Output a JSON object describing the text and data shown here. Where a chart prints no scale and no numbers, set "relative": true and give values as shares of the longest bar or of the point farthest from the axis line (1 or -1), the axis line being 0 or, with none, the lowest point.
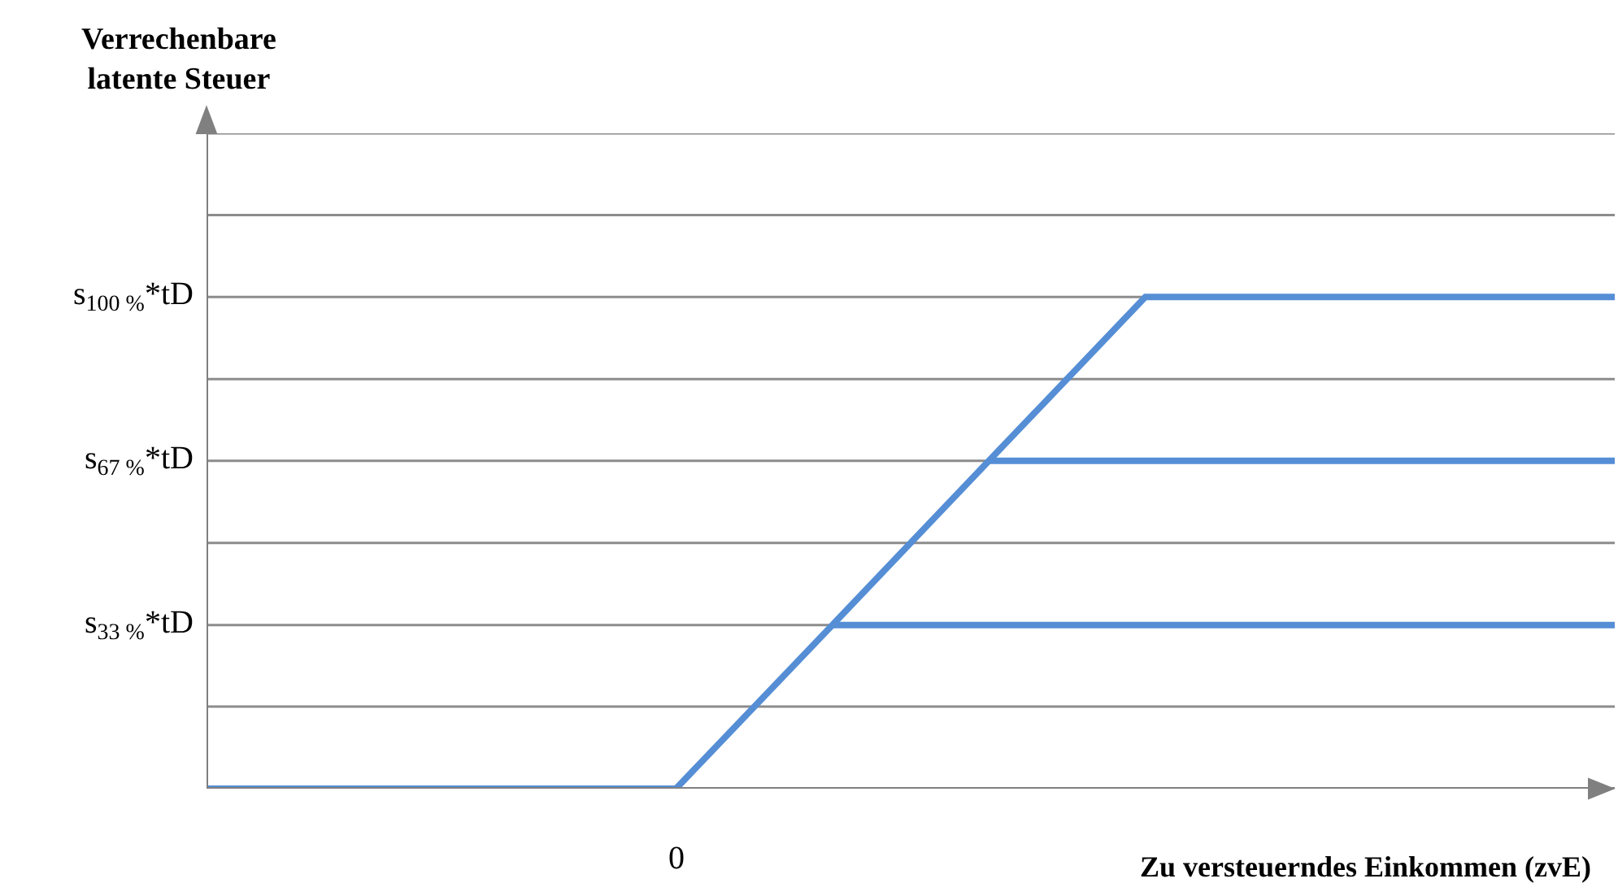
{
  "chart_data": {
    "type": "line",
    "relative": true,
    "xlabel": "Zu versteuerndes Einkommen (zvE)",
    "categories": [
      null,
      null,
      null,
      null,
      null,
      null,
      null,
      null,
      null,
      null
    ],
    "annotations": [
      "Verrechenbare latente Steuer",
      {
        "text": "0",
        "y": 0
      }
    ],
    "marker": "none",
    "line_style": "solid",
    "ref_lines": [
      {
        "axis": "y",
        "value": 0.167,
        "color": "#8c8c8c"
      },
      {
        "axis": "y",
        "value": 0.333,
        "label": "s$_{33 %}$*tD",
        "color": "#8c8c8c"
      },
      {
        "axis": "y",
        "value": 0.5,
        "color": "#8c8c8c"
      },
      {
        "axis": "y",
        "value": 0.667,
        "label": "s$_{67 %}$*tD",
        "color": "#8c8c8c"
      },
      {
        "axis": "y",
        "value": 0.833,
        "color": "#8c8c8c"
      },
      {
        "axis": "y",
        "value": 1,
        "label": "s$_{100 %}$*tD",
        "color": "#8c8c8c"
      },
      {
        "axis": "y",
        "value": 1.167,
        "color": "#8c8c8c"
      },
      {
        "axis": "y",
        "value": 1.333,
        "color": "#8c8c8c"
      }
    ],
    "series": [
      {
        "color": "#558ed5",
        "values": [
          0,
          0,
          0,
          0,
          0.333,
          0.667,
          1,
          1,
          1,
          1
        ]
      },
      {
        "color": "#558ed5",
        "values": [
          null,
          null,
          null,
          null,
          null,
          0.667,
          0.667,
          0.667,
          0.667,
          0.667
        ]
      },
      {
        "color": "#558ed5",
        "values": [
          null,
          null,
          null,
          null,
          0.333,
          0.333,
          0.333,
          0.333,
          0.333,
          0.333
        ]
      }
    ]
  }
}
